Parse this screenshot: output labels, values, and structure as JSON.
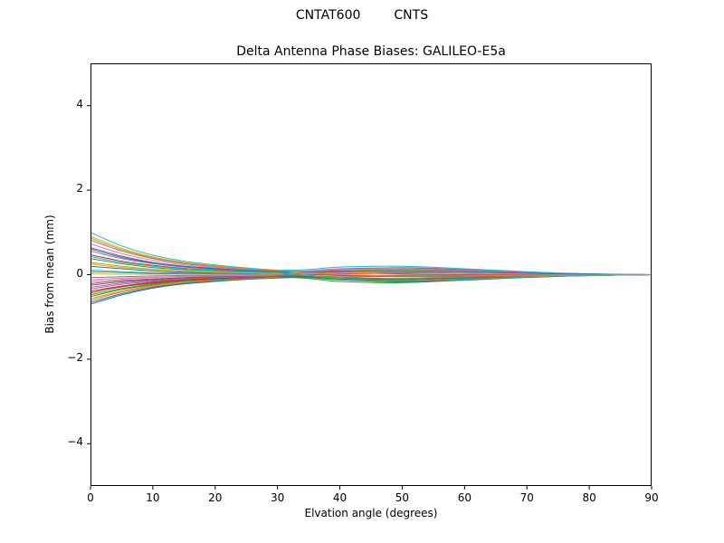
{
  "header": {
    "left": "CNTAT600",
    "right": "CNTS"
  },
  "chart_data": {
    "type": "line",
    "title": "Delta Antenna Phase Biases: GALILEO-E5a",
    "xlabel": "Elvation angle (degrees)",
    "ylabel": "Bias from mean (mm)",
    "xlim": [
      0,
      90
    ],
    "ylim": [
      -5,
      5
    ],
    "xticks": [
      0,
      10,
      20,
      30,
      40,
      50,
      60,
      70,
      80,
      90
    ],
    "yticks": [
      -4,
      -2,
      0,
      2,
      4
    ],
    "ytick_labels": [
      "−4",
      "−2",
      "0",
      "2",
      "4"
    ],
    "grid": false,
    "legend": "none",
    "x": [
      0,
      5,
      10,
      15,
      20,
      25,
      30,
      35,
      40,
      50,
      60,
      75,
      90
    ],
    "colors": [
      "#1f77b4",
      "#ff7f0e",
      "#2ca02c",
      "#d62728",
      "#9467bd",
      "#8c564b",
      "#e377c2",
      "#7f7f7f",
      "#bcbd22",
      "#17becf"
    ],
    "series": [
      [
        -0.7,
        -0.48,
        -0.32,
        -0.22,
        -0.16,
        -0.11,
        -0.08,
        -0.05,
        -0.04,
        -0.01,
        -0.01,
        0,
        0
      ],
      [
        -0.61,
        -0.41,
        -0.28,
        -0.2,
        -0.14,
        -0.1,
        -0.07,
        0.0,
        0.05,
        0.11,
        0.08,
        0.02,
        0
      ],
      [
        -0.52,
        -0.35,
        -0.24,
        -0.17,
        -0.12,
        -0.08,
        -0.06,
        -0.09,
        -0.16,
        -0.19,
        -0.13,
        -0.04,
        0
      ],
      [
        -0.43,
        -0.29,
        -0.2,
        -0.14,
        -0.1,
        -0.07,
        -0.05,
        0.01,
        0.08,
        0.13,
        0.1,
        0.03,
        0
      ],
      [
        -0.34,
        -0.23,
        -0.16,
        -0.11,
        -0.08,
        -0.05,
        -0.04,
        -0.03,
        -0.04,
        -0.04,
        -0.02,
        -0.01,
        0
      ],
      [
        -0.25,
        -0.17,
        -0.12,
        -0.08,
        -0.06,
        -0.04,
        -0.03,
        -0.05,
        -0.08,
        -0.11,
        -0.07,
        -0.02,
        0
      ],
      [
        -0.16,
        -0.11,
        -0.07,
        -0.05,
        -0.04,
        -0.03,
        -0.02,
        0.04,
        0.11,
        0.17,
        0.12,
        0.03,
        0
      ],
      [
        -0.07,
        -0.05,
        -0.03,
        -0.02,
        -0.02,
        -0.01,
        -0.01,
        -0.05,
        -0.12,
        -0.17,
        -0.12,
        -0.03,
        0
      ],
      [
        0.02,
        0.01,
        0.01,
        0.01,
        0.0,
        0.0,
        0.0,
        0.03,
        0.06,
        0.09,
        0.06,
        0.02,
        0
      ],
      [
        0.11,
        0.07,
        0.05,
        0.04,
        0.03,
        0.02,
        0.01,
        0.03,
        0.06,
        0.07,
        0.05,
        0.01,
        0
      ],
      [
        0.2,
        0.14,
        0.09,
        0.06,
        0.05,
        0.03,
        0.02,
        -0.04,
        -0.1,
        -0.16,
        -0.11,
        -0.03,
        0
      ],
      [
        0.29,
        0.2,
        0.13,
        0.09,
        0.07,
        0.05,
        0.03,
        0.07,
        0.12,
        0.16,
        0.11,
        0.03,
        0
      ],
      [
        0.38,
        0.26,
        0.17,
        0.12,
        0.09,
        0.06,
        0.04,
        0.01,
        -0.02,
        -0.05,
        -0.04,
        -0.01,
        0
      ],
      [
        0.47,
        0.32,
        0.22,
        0.15,
        0.11,
        0.08,
        0.05,
        0.02,
        -0.01,
        -0.03,
        -0.03,
        -0.01,
        0
      ],
      [
        0.56,
        0.38,
        0.26,
        0.18,
        0.13,
        0.09,
        0.06,
        0.09,
        0.14,
        0.16,
        0.12,
        0.03,
        0
      ],
      [
        0.64,
        0.44,
        0.29,
        0.2,
        0.15,
        0.1,
        0.07,
        -0.01,
        -0.1,
        -0.17,
        -0.12,
        -0.04,
        0
      ],
      [
        0.73,
        0.5,
        0.34,
        0.23,
        0.17,
        0.12,
        0.08,
        0.09,
        0.12,
        0.13,
        0.09,
        0.02,
        0
      ],
      [
        0.82,
        0.56,
        0.38,
        0.26,
        0.19,
        0.13,
        0.09,
        0.06,
        0.05,
        0.02,
        0.01,
        0,
        0
      ],
      [
        0.91,
        0.62,
        0.42,
        0.29,
        0.21,
        0.15,
        0.1,
        0.02,
        -0.04,
        -0.11,
        -0.08,
        -0.03,
        0
      ],
      [
        1.0,
        0.68,
        0.46,
        0.32,
        0.23,
        0.16,
        0.11,
        0.12,
        0.18,
        0.2,
        0.14,
        0.04,
        0
      ],
      [
        -0.66,
        -0.45,
        -0.3,
        -0.21,
        -0.15,
        -0.11,
        -0.07,
        -0.07,
        -0.09,
        -0.09,
        -0.07,
        -0.02,
        0
      ],
      [
        -0.57,
        -0.39,
        -0.26,
        -0.18,
        -0.13,
        -0.09,
        -0.06,
        -0.01,
        0.04,
        0.09,
        0.06,
        0.02,
        0
      ],
      [
        -0.48,
        -0.33,
        -0.22,
        -0.15,
        -0.11,
        -0.08,
        -0.05,
        -0.07,
        -0.12,
        -0.15,
        -0.1,
        -0.03,
        0
      ],
      [
        -0.39,
        -0.27,
        -0.18,
        -0.12,
        -0.09,
        -0.06,
        -0.04,
        -0.01,
        0.02,
        0.04,
        0.04,
        0.01,
        0
      ],
      [
        -0.3,
        -0.2,
        -0.14,
        -0.1,
        -0.07,
        -0.05,
        -0.03,
        0.02,
        0.07,
        0.12,
        0.09,
        0.03,
        0
      ],
      [
        -0.21,
        -0.14,
        -0.1,
        -0.07,
        -0.05,
        -0.03,
        -0.02,
        -0.05,
        -0.09,
        -0.12,
        -0.08,
        -0.02,
        0
      ],
      [
        -0.12,
        -0.08,
        -0.06,
        -0.04,
        -0.03,
        -0.02,
        -0.01,
        0.01,
        0.03,
        0.06,
        0.04,
        0.01,
        0
      ],
      [
        0.07,
        0.05,
        0.03,
        0.02,
        0.02,
        0.01,
        0.01,
        -0.03,
        -0.06,
        -0.09,
        -0.06,
        -0.02,
        0
      ],
      [
        0.25,
        0.17,
        0.12,
        0.08,
        0.06,
        0.04,
        0.03,
        0.05,
        0.09,
        0.11,
        0.08,
        0.02,
        0
      ],
      [
        0.43,
        0.29,
        0.2,
        0.14,
        0.1,
        0.07,
        0.05,
        -0.02,
        -0.09,
        -0.14,
        -0.11,
        -0.03,
        0
      ],
      [
        0.61,
        0.41,
        0.28,
        0.2,
        0.14,
        0.1,
        0.07,
        0.06,
        0.09,
        0.09,
        0.07,
        0.02,
        0
      ],
      [
        0.87,
        0.59,
        0.4,
        0.28,
        0.2,
        0.14,
        0.1,
        0.04,
        0.0,
        -0.03,
        -0.03,
        -0.01,
        0
      ]
    ]
  }
}
